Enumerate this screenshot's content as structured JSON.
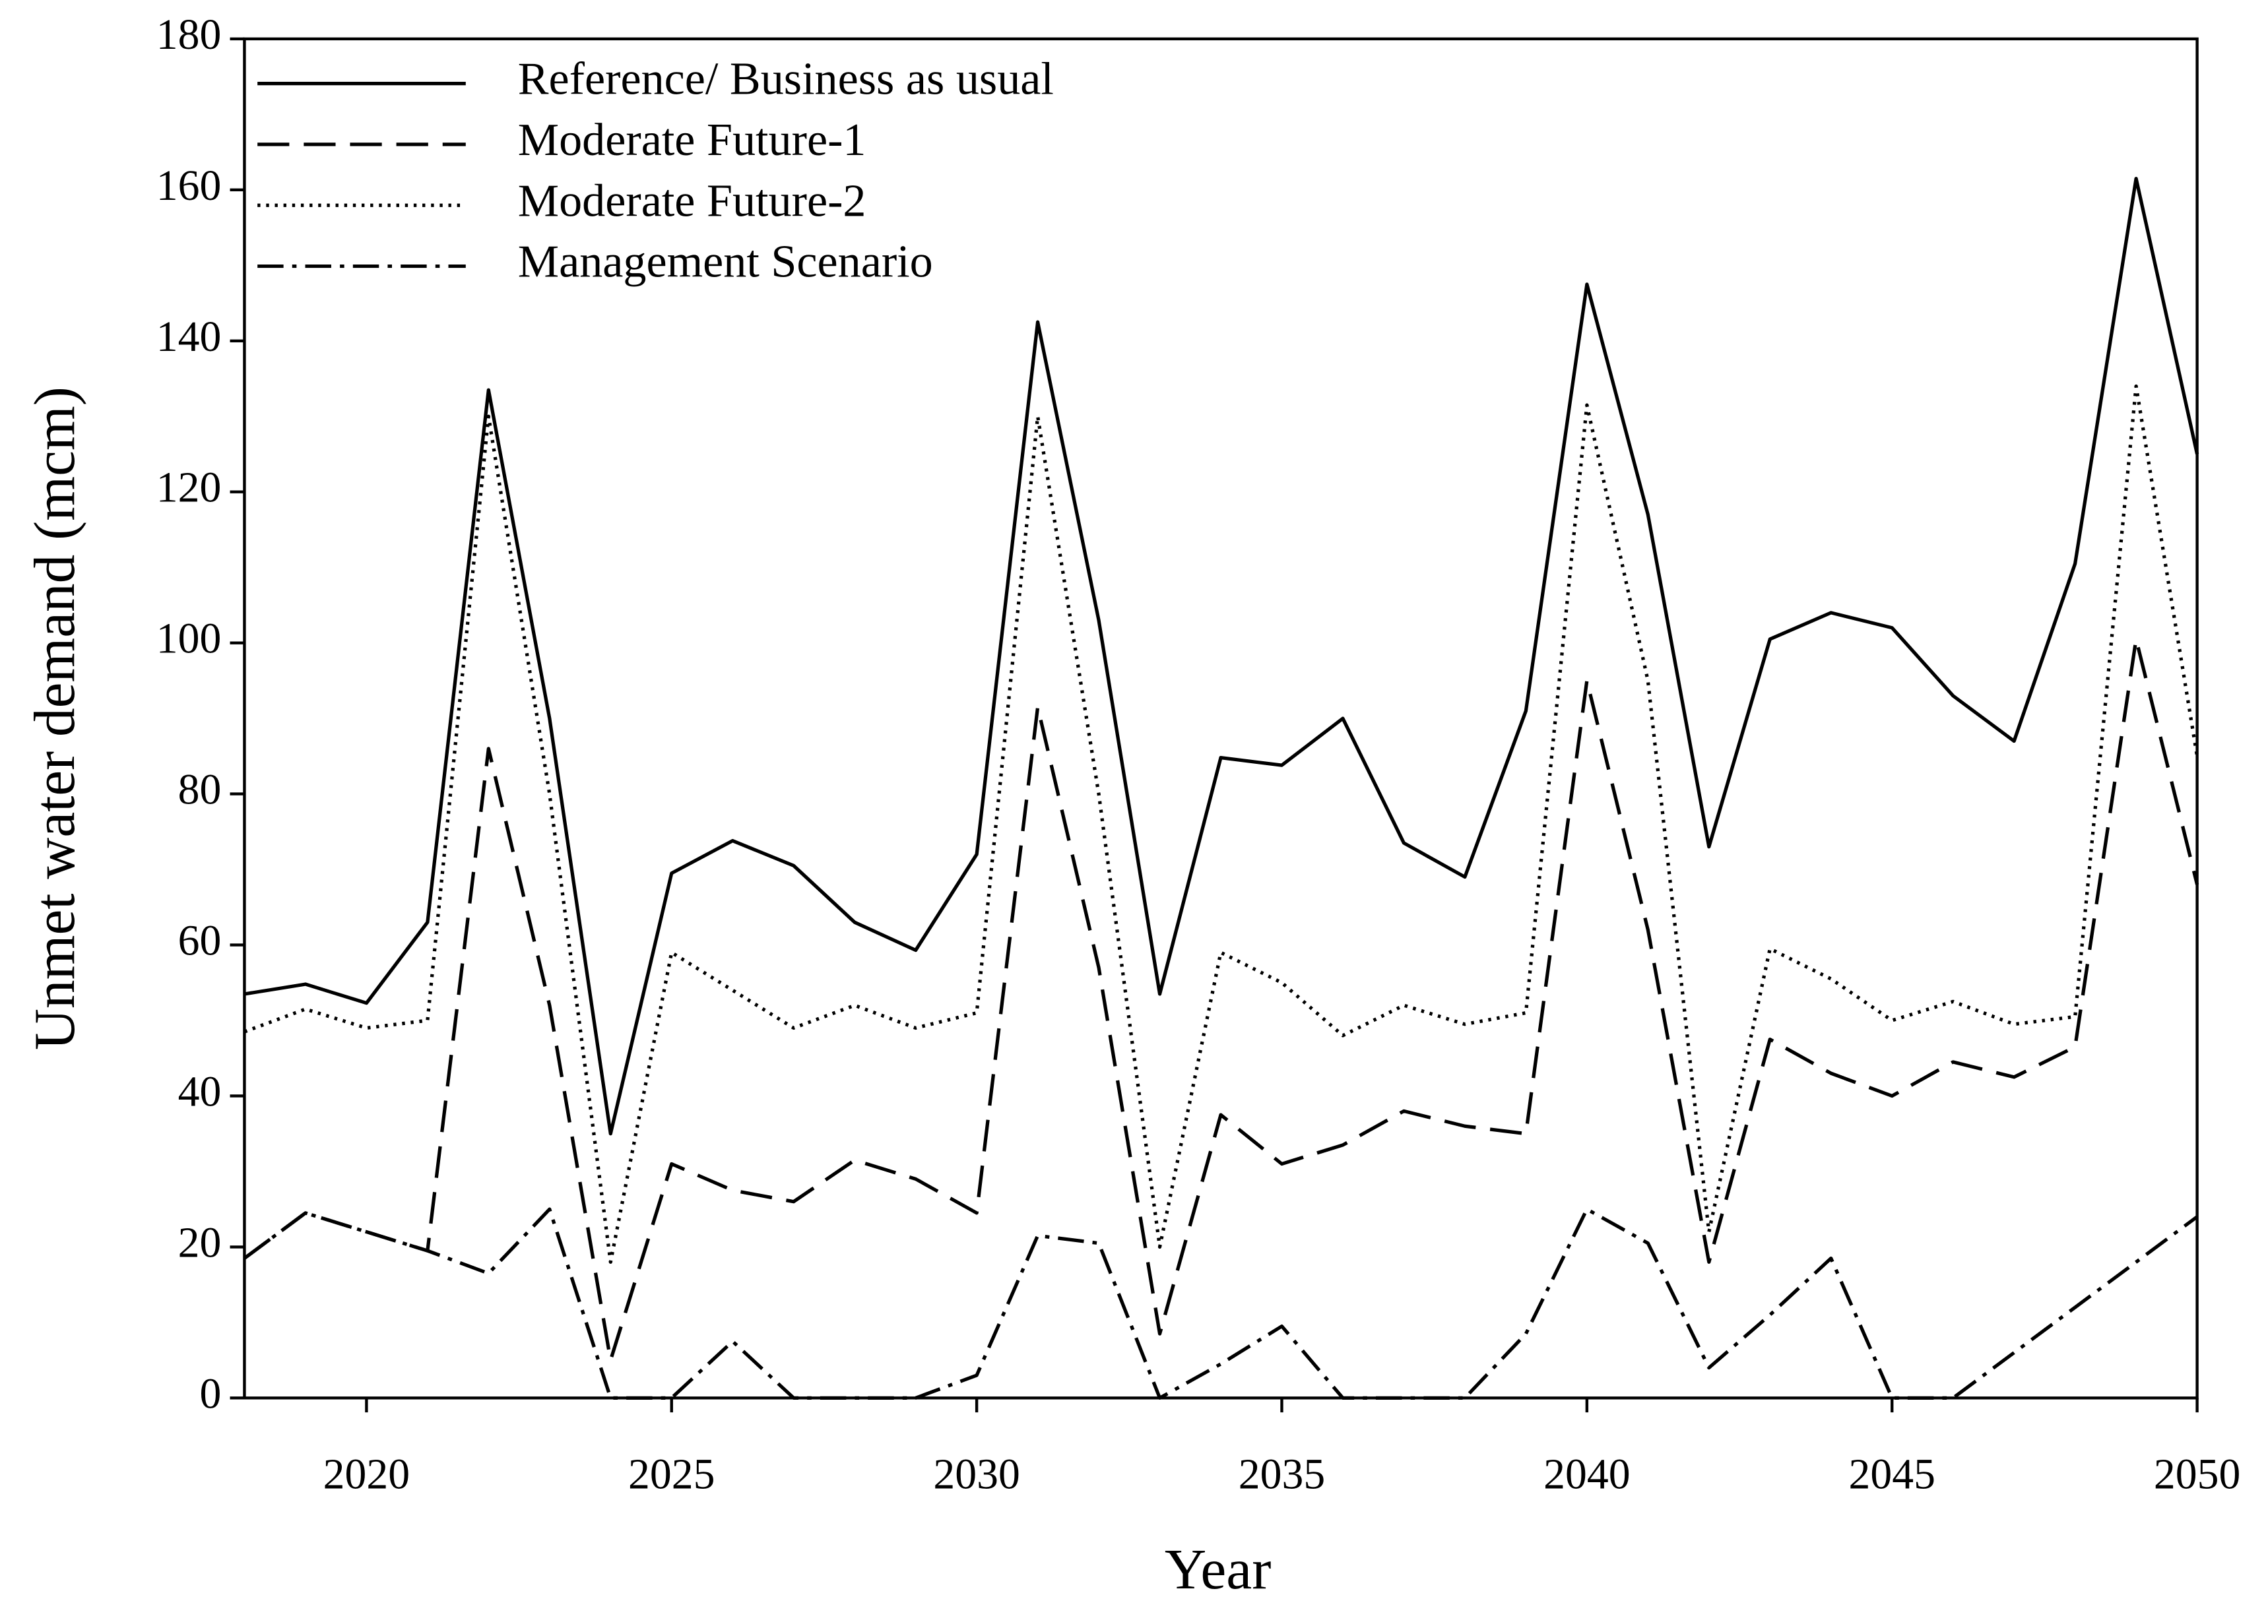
{
  "chart_data": {
    "type": "line",
    "x_label": "Year",
    "y_label": "Unmet water demand (mcm)",
    "x": [
      2018,
      2019,
      2020,
      2021,
      2022,
      2023,
      2024,
      2025,
      2026,
      2027,
      2028,
      2029,
      2030,
      2031,
      2032,
      2033,
      2034,
      2035,
      2036,
      2037,
      2038,
      2039,
      2040,
      2041,
      2042,
      2043,
      2044,
      2045,
      2046,
      2047,
      2048,
      2049,
      2050
    ],
    "xlim": [
      2018,
      2050
    ],
    "xticks": [
      2020,
      2025,
      2030,
      2035,
      2040,
      2045,
      2050
    ],
    "ylim": [
      0,
      180
    ],
    "yticks": [
      0,
      20,
      40,
      60,
      80,
      100,
      120,
      140,
      160,
      180
    ],
    "grid": false,
    "legend": "upper left",
    "series": [
      {
        "name": "Reference/ Business as usual",
        "color": "#000000",
        "dash": "solid",
        "values": [
          53.5,
          54.8,
          52.3,
          63,
          133.5,
          90,
          35,
          69.5,
          73.8,
          70.5,
          63,
          59.3,
          72,
          142.5,
          103,
          53.5,
          84.8,
          83.8,
          90,
          73.5,
          69,
          91,
          147.5,
          117,
          73,
          100.5,
          104,
          102,
          93,
          87,
          110.5,
          161.5,
          125
        ]
      },
      {
        "name": "Moderate Future-1",
        "color": "#000000",
        "dash": "dashed",
        "values": [
          18.5,
          24.5,
          22,
          19.5,
          86,
          52,
          5,
          31,
          27.5,
          26,
          31.5,
          29,
          24.5,
          91.5,
          57,
          8.5,
          37.5,
          31,
          33.5,
          38,
          36,
          35,
          95,
          62,
          18,
          47.5,
          43,
          40,
          44.5,
          42.5,
          46.5,
          100.5,
          68
        ]
      },
      {
        "name": "Moderate Future-2",
        "color": "#000000",
        "dash": "dotted",
        "values": [
          48.5,
          51.5,
          49,
          50,
          130,
          80,
          18,
          59,
          54,
          49,
          52,
          49,
          51,
          130,
          80,
          20,
          59,
          55,
          48,
          52,
          49.5,
          51,
          131.5,
          95,
          22,
          59.5,
          55.5,
          50,
          52.5,
          49.5,
          50.5,
          134,
          85
        ]
      },
      {
        "name": "Management Scenario",
        "color": "#000000",
        "dash": "dashdot",
        "values": [
          18.5,
          24.5,
          22,
          19.5,
          16.5,
          25,
          0,
          0,
          7.5,
          0,
          0,
          0,
          3,
          21.5,
          20.5,
          0,
          4.5,
          9.5,
          0,
          0,
          0,
          8.5,
          25,
          20.5,
          4,
          11,
          18.5,
          0,
          0,
          6,
          12,
          18,
          24
        ]
      }
    ]
  }
}
